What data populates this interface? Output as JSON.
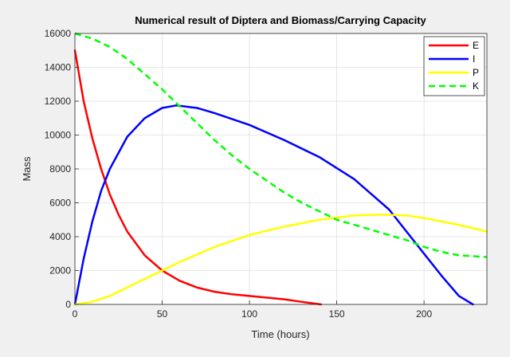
{
  "chart_data": {
    "type": "line",
    "title": "Numerical result of Diptera and Biomass/Carrying Capacity",
    "xlabel": "Time (hours)",
    "ylabel": "Mass",
    "xlim": [
      0,
      236
    ],
    "ylim": [
      0,
      16000
    ],
    "xticks": [
      0,
      50,
      100,
      150,
      200
    ],
    "yticks": [
      0,
      2000,
      4000,
      6000,
      8000,
      10000,
      12000,
      14000,
      16000
    ],
    "grid": true,
    "legend_position": "top-right",
    "series": [
      {
        "name": "E",
        "color": "#ff0000",
        "dash": "solid",
        "x": [
          0,
          5,
          10,
          15,
          20,
          25,
          30,
          40,
          50,
          60,
          70,
          80,
          90,
          100,
          110,
          120,
          130,
          141
        ],
        "y": [
          15000,
          12000,
          9800,
          8000,
          6500,
          5300,
          4300,
          2900,
          2000,
          1400,
          1000,
          750,
          600,
          500,
          400,
          300,
          150,
          0
        ]
      },
      {
        "name": "I",
        "color": "#0000ff",
        "dash": "solid",
        "x": [
          0,
          5,
          10,
          15,
          20,
          30,
          40,
          50,
          58,
          70,
          80,
          100,
          120,
          140,
          160,
          180,
          200,
          210,
          220,
          228
        ],
        "y": [
          0,
          2700,
          4900,
          6700,
          8000,
          9900,
          11000,
          11600,
          11750,
          11600,
          11300,
          10600,
          9700,
          8700,
          7400,
          5600,
          3000,
          1700,
          500,
          0
        ]
      },
      {
        "name": "P",
        "color": "#ffff00",
        "dash": "solid",
        "x": [
          0,
          10,
          20,
          30,
          40,
          50,
          60,
          80,
          100,
          120,
          140,
          160,
          175,
          190,
          200,
          210,
          220,
          236
        ],
        "y": [
          0,
          150,
          500,
          1000,
          1500,
          2000,
          2500,
          3400,
          4100,
          4600,
          5000,
          5250,
          5300,
          5250,
          5100,
          4900,
          4700,
          4300
        ]
      },
      {
        "name": "K",
        "color": "#00ff00",
        "dash": "dashed",
        "x": [
          0,
          10,
          20,
          30,
          40,
          50,
          60,
          70,
          80,
          90,
          100,
          110,
          120,
          130,
          140,
          150,
          160,
          170,
          180,
          190,
          200,
          210,
          220,
          236
        ],
        "y": [
          16000,
          15700,
          15200,
          14500,
          13600,
          12700,
          11700,
          10700,
          9700,
          8800,
          8000,
          7300,
          6600,
          6000,
          5500,
          5000,
          4700,
          4400,
          4100,
          3800,
          3400,
          3100,
          2900,
          2800
        ]
      }
    ]
  }
}
